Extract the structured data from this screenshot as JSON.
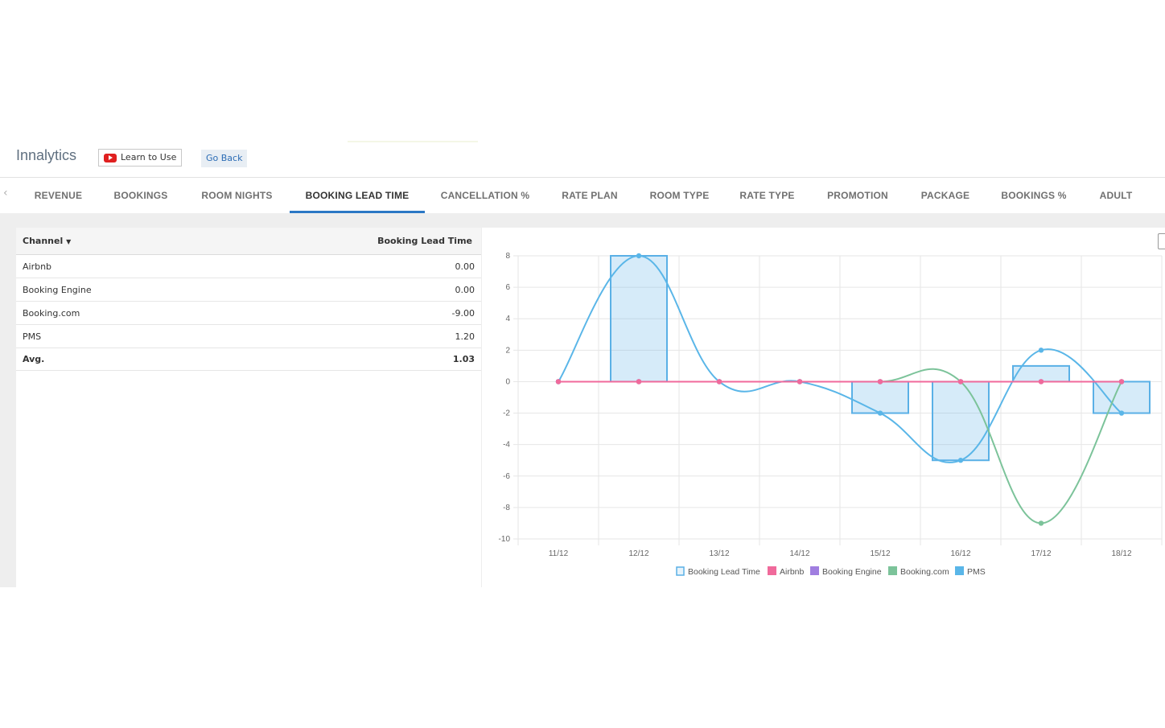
{
  "app": {
    "title": "Innalytics",
    "learn_label": "Learn to Use",
    "go_back_label": "Go Back"
  },
  "tabs": [
    {
      "label": "REVENUE"
    },
    {
      "label": "BOOKINGS"
    },
    {
      "label": "ROOM NIGHTS"
    },
    {
      "label": "BOOKING LEAD TIME",
      "active": true
    },
    {
      "label": "CANCELLATION %"
    },
    {
      "label": "RATE PLAN"
    },
    {
      "label": "ROOM TYPE"
    },
    {
      "label": "RATE TYPE"
    },
    {
      "label": "PROMOTION"
    },
    {
      "label": "PACKAGE"
    },
    {
      "label": "BOOKINGS %"
    },
    {
      "label": "ADULT"
    }
  ],
  "table": {
    "headers": {
      "channel": "Channel",
      "lead": "Booking Lead Time"
    },
    "rows": [
      {
        "channel": "Airbnb",
        "value": "0.00"
      },
      {
        "channel": "Booking Engine",
        "value": "0.00"
      },
      {
        "channel": "Booking.com",
        "value": "-9.00"
      },
      {
        "channel": "PMS",
        "value": "1.20"
      }
    ],
    "avg": {
      "channel": "Avg.",
      "value": "1.03"
    }
  },
  "chart_data": {
    "type": "bar",
    "categories": [
      "11/12",
      "12/12",
      "13/12",
      "14/12",
      "15/12",
      "16/12",
      "17/12",
      "18/12"
    ],
    "ylim": [
      -10,
      8
    ],
    "yticks": [
      8,
      6,
      4,
      2,
      0,
      -2,
      -4,
      -6,
      -8,
      -10
    ],
    "grid": true,
    "legend_position": "bottom",
    "series": [
      {
        "name": "Booking Lead Time",
        "type": "bar",
        "color": "#5ab0e6",
        "values": [
          0,
          8,
          0,
          0,
          -2,
          -5,
          1,
          -2
        ]
      },
      {
        "name": "Airbnb",
        "type": "line",
        "color": "#f06a9b",
        "values": [
          0,
          0,
          0,
          0,
          0,
          0,
          0,
          0
        ]
      },
      {
        "name": "Booking Engine",
        "type": "line",
        "color": "#a07ee0",
        "values": [
          0,
          0,
          0,
          0,
          0,
          0,
          0,
          0
        ]
      },
      {
        "name": "Booking.com",
        "type": "line",
        "color": "#7cc39a",
        "values": [
          0,
          0,
          0,
          0,
          0,
          0,
          -9,
          0
        ]
      },
      {
        "name": "PMS",
        "type": "line",
        "color": "#5ab6e8",
        "values": [
          0,
          8,
          0,
          0,
          -2,
          -5,
          2,
          -2
        ]
      }
    ]
  }
}
